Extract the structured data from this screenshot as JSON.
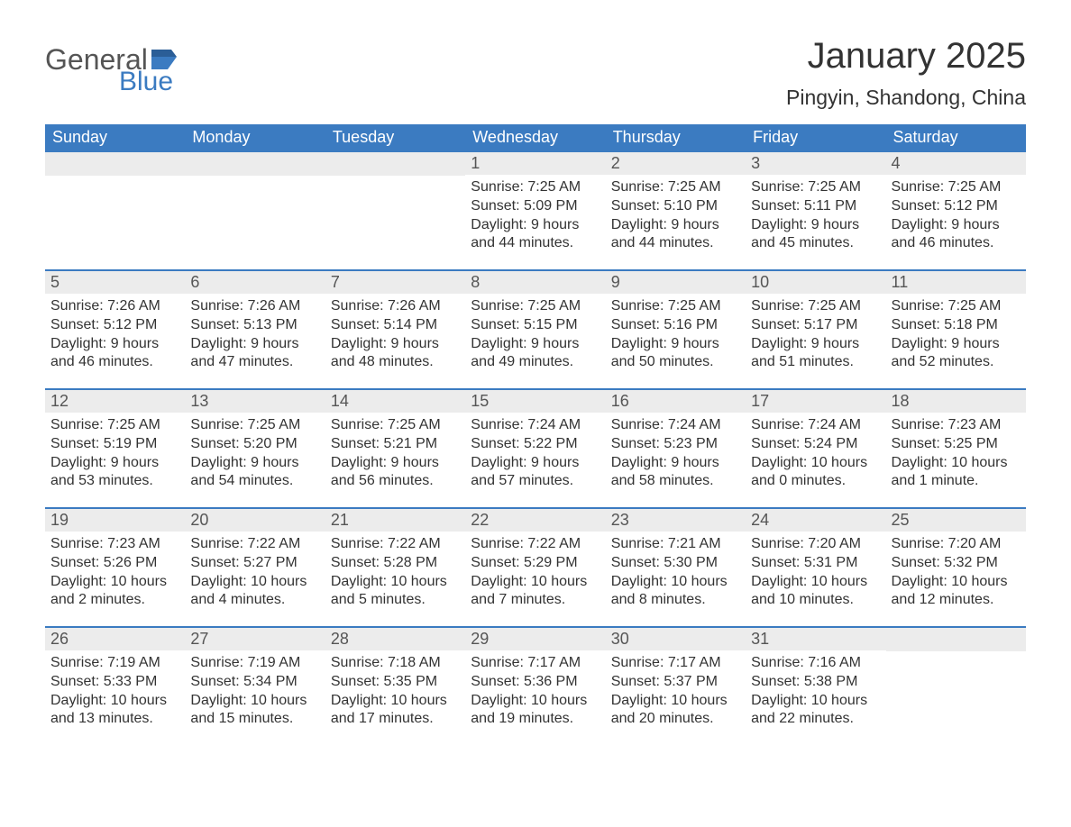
{
  "logo": {
    "general": "General",
    "blue": "Blue"
  },
  "header": {
    "month_title": "January 2025",
    "location": "Pingyin, Shandong, China"
  },
  "colors": {
    "header_bg": "#3b7bc1",
    "header_text": "#ffffff",
    "daynum_bg": "#ececec",
    "body_text": "#333333",
    "page_bg": "#ffffff"
  },
  "day_labels": [
    "Sunday",
    "Monday",
    "Tuesday",
    "Wednesday",
    "Thursday",
    "Friday",
    "Saturday"
  ],
  "weeks": [
    [
      {
        "n": "",
        "sr": "",
        "ss": "",
        "dl": ""
      },
      {
        "n": "",
        "sr": "",
        "ss": "",
        "dl": ""
      },
      {
        "n": "",
        "sr": "",
        "ss": "",
        "dl": ""
      },
      {
        "n": "1",
        "sr": "Sunrise: 7:25 AM",
        "ss": "Sunset: 5:09 PM",
        "dl": "Daylight: 9 hours and 44 minutes."
      },
      {
        "n": "2",
        "sr": "Sunrise: 7:25 AM",
        "ss": "Sunset: 5:10 PM",
        "dl": "Daylight: 9 hours and 44 minutes."
      },
      {
        "n": "3",
        "sr": "Sunrise: 7:25 AM",
        "ss": "Sunset: 5:11 PM",
        "dl": "Daylight: 9 hours and 45 minutes."
      },
      {
        "n": "4",
        "sr": "Sunrise: 7:25 AM",
        "ss": "Sunset: 5:12 PM",
        "dl": "Daylight: 9 hours and 46 minutes."
      }
    ],
    [
      {
        "n": "5",
        "sr": "Sunrise: 7:26 AM",
        "ss": "Sunset: 5:12 PM",
        "dl": "Daylight: 9 hours and 46 minutes."
      },
      {
        "n": "6",
        "sr": "Sunrise: 7:26 AM",
        "ss": "Sunset: 5:13 PM",
        "dl": "Daylight: 9 hours and 47 minutes."
      },
      {
        "n": "7",
        "sr": "Sunrise: 7:26 AM",
        "ss": "Sunset: 5:14 PM",
        "dl": "Daylight: 9 hours and 48 minutes."
      },
      {
        "n": "8",
        "sr": "Sunrise: 7:25 AM",
        "ss": "Sunset: 5:15 PM",
        "dl": "Daylight: 9 hours and 49 minutes."
      },
      {
        "n": "9",
        "sr": "Sunrise: 7:25 AM",
        "ss": "Sunset: 5:16 PM",
        "dl": "Daylight: 9 hours and 50 minutes."
      },
      {
        "n": "10",
        "sr": "Sunrise: 7:25 AM",
        "ss": "Sunset: 5:17 PM",
        "dl": "Daylight: 9 hours and 51 minutes."
      },
      {
        "n": "11",
        "sr": "Sunrise: 7:25 AM",
        "ss": "Sunset: 5:18 PM",
        "dl": "Daylight: 9 hours and 52 minutes."
      }
    ],
    [
      {
        "n": "12",
        "sr": "Sunrise: 7:25 AM",
        "ss": "Sunset: 5:19 PM",
        "dl": "Daylight: 9 hours and 53 minutes."
      },
      {
        "n": "13",
        "sr": "Sunrise: 7:25 AM",
        "ss": "Sunset: 5:20 PM",
        "dl": "Daylight: 9 hours and 54 minutes."
      },
      {
        "n": "14",
        "sr": "Sunrise: 7:25 AM",
        "ss": "Sunset: 5:21 PM",
        "dl": "Daylight: 9 hours and 56 minutes."
      },
      {
        "n": "15",
        "sr": "Sunrise: 7:24 AM",
        "ss": "Sunset: 5:22 PM",
        "dl": "Daylight: 9 hours and 57 minutes."
      },
      {
        "n": "16",
        "sr": "Sunrise: 7:24 AM",
        "ss": "Sunset: 5:23 PM",
        "dl": "Daylight: 9 hours and 58 minutes."
      },
      {
        "n": "17",
        "sr": "Sunrise: 7:24 AM",
        "ss": "Sunset: 5:24 PM",
        "dl": "Daylight: 10 hours and 0 minutes."
      },
      {
        "n": "18",
        "sr": "Sunrise: 7:23 AM",
        "ss": "Sunset: 5:25 PM",
        "dl": "Daylight: 10 hours and 1 minute."
      }
    ],
    [
      {
        "n": "19",
        "sr": "Sunrise: 7:23 AM",
        "ss": "Sunset: 5:26 PM",
        "dl": "Daylight: 10 hours and 2 minutes."
      },
      {
        "n": "20",
        "sr": "Sunrise: 7:22 AM",
        "ss": "Sunset: 5:27 PM",
        "dl": "Daylight: 10 hours and 4 minutes."
      },
      {
        "n": "21",
        "sr": "Sunrise: 7:22 AM",
        "ss": "Sunset: 5:28 PM",
        "dl": "Daylight: 10 hours and 5 minutes."
      },
      {
        "n": "22",
        "sr": "Sunrise: 7:22 AM",
        "ss": "Sunset: 5:29 PM",
        "dl": "Daylight: 10 hours and 7 minutes."
      },
      {
        "n": "23",
        "sr": "Sunrise: 7:21 AM",
        "ss": "Sunset: 5:30 PM",
        "dl": "Daylight: 10 hours and 8 minutes."
      },
      {
        "n": "24",
        "sr": "Sunrise: 7:20 AM",
        "ss": "Sunset: 5:31 PM",
        "dl": "Daylight: 10 hours and 10 minutes."
      },
      {
        "n": "25",
        "sr": "Sunrise: 7:20 AM",
        "ss": "Sunset: 5:32 PM",
        "dl": "Daylight: 10 hours and 12 minutes."
      }
    ],
    [
      {
        "n": "26",
        "sr": "Sunrise: 7:19 AM",
        "ss": "Sunset: 5:33 PM",
        "dl": "Daylight: 10 hours and 13 minutes."
      },
      {
        "n": "27",
        "sr": "Sunrise: 7:19 AM",
        "ss": "Sunset: 5:34 PM",
        "dl": "Daylight: 10 hours and 15 minutes."
      },
      {
        "n": "28",
        "sr": "Sunrise: 7:18 AM",
        "ss": "Sunset: 5:35 PM",
        "dl": "Daylight: 10 hours and 17 minutes."
      },
      {
        "n": "29",
        "sr": "Sunrise: 7:17 AM",
        "ss": "Sunset: 5:36 PM",
        "dl": "Daylight: 10 hours and 19 minutes."
      },
      {
        "n": "30",
        "sr": "Sunrise: 7:17 AM",
        "ss": "Sunset: 5:37 PM",
        "dl": "Daylight: 10 hours and 20 minutes."
      },
      {
        "n": "31",
        "sr": "Sunrise: 7:16 AM",
        "ss": "Sunset: 5:38 PM",
        "dl": "Daylight: 10 hours and 22 minutes."
      },
      {
        "n": "",
        "sr": "",
        "ss": "",
        "dl": ""
      }
    ]
  ]
}
